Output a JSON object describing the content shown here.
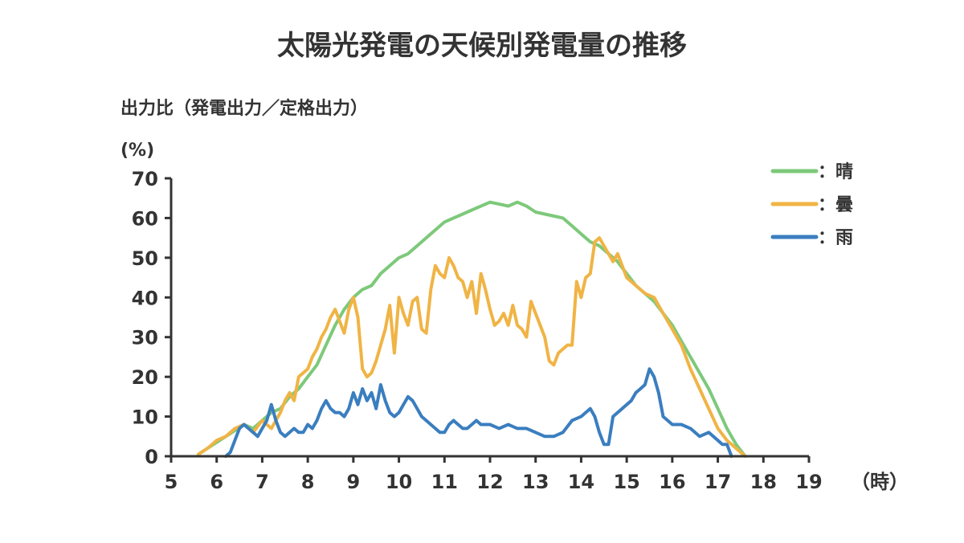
{
  "chart_data": {
    "type": "line",
    "title": "太陽光発電の天候別発電量の推移",
    "ylabel": "出力比（発電出力／定格出力）",
    "yunit": "(%)",
    "xlabel": "（時）",
    "xlim": [
      5,
      19
    ],
    "ylim": [
      0,
      70
    ],
    "x_ticks": [
      "5",
      "6",
      "7",
      "8",
      "9",
      "10",
      "11",
      "12",
      "13",
      "14",
      "15",
      "16",
      "17",
      "18",
      "19"
    ],
    "y_ticks": [
      "0",
      "10",
      "20",
      "30",
      "40",
      "50",
      "60",
      "70"
    ],
    "legend_position": "top-right",
    "grid": false,
    "series": [
      {
        "name": "：晴",
        "color": "#7dc97a",
        "x": [
          5.6,
          5.8,
          6.0,
          6.2,
          6.4,
          6.6,
          6.8,
          7.0,
          7.2,
          7.4,
          7.6,
          7.8,
          8.0,
          8.2,
          8.4,
          8.6,
          8.8,
          9.0,
          9.2,
          9.4,
          9.6,
          9.8,
          10.0,
          10.2,
          10.4,
          10.6,
          10.8,
          11.0,
          11.2,
          11.4,
          11.6,
          11.8,
          12.0,
          12.2,
          12.4,
          12.6,
          12.8,
          13.0,
          13.2,
          13.4,
          13.6,
          13.8,
          14.0,
          14.2,
          14.4,
          14.6,
          14.8,
          15.0,
          15.2,
          15.4,
          15.6,
          15.8,
          16.0,
          16.2,
          16.4,
          16.6,
          16.8,
          17.0,
          17.2,
          17.4,
          17.6
        ],
        "y": [
          0.5,
          2,
          3.5,
          5,
          6.5,
          8,
          7,
          9,
          11,
          12,
          15,
          17,
          20,
          23,
          28,
          33,
          37,
          40,
          42,
          43,
          46,
          48,
          50,
          51,
          53,
          55,
          57,
          59,
          60,
          61,
          62,
          63,
          64,
          63.5,
          63,
          64,
          63,
          61.5,
          61,
          60.5,
          60,
          58,
          56,
          54,
          53,
          51,
          49,
          46,
          43,
          41,
          39,
          36,
          33,
          29,
          25,
          21,
          17,
          12,
          7,
          3,
          0
        ]
      },
      {
        "name": "：曇",
        "color": "#f0b445",
        "x": [
          5.6,
          5.8,
          6.0,
          6.2,
          6.4,
          6.6,
          6.8,
          7.0,
          7.1,
          7.2,
          7.3,
          7.4,
          7.5,
          7.6,
          7.7,
          7.8,
          7.9,
          8.0,
          8.1,
          8.2,
          8.3,
          8.4,
          8.5,
          8.6,
          8.7,
          8.8,
          8.9,
          9.0,
          9.1,
          9.2,
          9.3,
          9.4,
          9.5,
          9.6,
          9.7,
          9.8,
          9.9,
          10.0,
          10.1,
          10.2,
          10.3,
          10.4,
          10.5,
          10.6,
          10.7,
          10.8,
          10.9,
          11.0,
          11.1,
          11.2,
          11.3,
          11.4,
          11.5,
          11.6,
          11.7,
          11.8,
          11.9,
          12.0,
          12.1,
          12.2,
          12.3,
          12.4,
          12.5,
          12.6,
          12.7,
          12.8,
          12.9,
          13.0,
          13.1,
          13.2,
          13.3,
          13.4,
          13.5,
          13.6,
          13.7,
          13.8,
          13.9,
          14.0,
          14.1,
          14.2,
          14.3,
          14.4,
          14.5,
          14.6,
          14.7,
          14.8,
          14.9,
          15.0,
          15.2,
          15.4,
          15.6,
          15.8,
          16.0,
          16.2,
          16.4,
          16.6,
          16.8,
          17.0,
          17.2,
          17.4,
          17.6
        ],
        "y": [
          0.5,
          2,
          4,
          5,
          7,
          8,
          6,
          9,
          8,
          7,
          9,
          11,
          14,
          16,
          14,
          20,
          21,
          22,
          25,
          27,
          30,
          32,
          35,
          37,
          34,
          31,
          37,
          40,
          35,
          22,
          20,
          21,
          24,
          28,
          32,
          38,
          26,
          40,
          36,
          33,
          39,
          40,
          32,
          31,
          42,
          48,
          46,
          45,
          50,
          48,
          45,
          44,
          40,
          44,
          36,
          46,
          42,
          37,
          33,
          34,
          36,
          33,
          38,
          33,
          32,
          30,
          39,
          36,
          33,
          30,
          24,
          23,
          26,
          27,
          28,
          28,
          44,
          40,
          45,
          46,
          54,
          55,
          53,
          51,
          49,
          51,
          48,
          45,
          43,
          41,
          40,
          36,
          32,
          28,
          22,
          17,
          12,
          7,
          4,
          2,
          0
        ]
      },
      {
        "name": "：雨",
        "color": "#3a7ebf",
        "x": [
          6.2,
          6.3,
          6.4,
          6.5,
          6.6,
          6.8,
          6.9,
          7.0,
          7.1,
          7.2,
          7.3,
          7.4,
          7.5,
          7.6,
          7.7,
          7.8,
          7.9,
          8.0,
          8.1,
          8.2,
          8.3,
          8.4,
          8.5,
          8.6,
          8.7,
          8.8,
          8.9,
          9.0,
          9.1,
          9.2,
          9.3,
          9.4,
          9.5,
          9.6,
          9.7,
          9.8,
          9.9,
          10.0,
          10.1,
          10.2,
          10.3,
          10.4,
          10.5,
          10.6,
          10.7,
          10.8,
          10.9,
          11.0,
          11.1,
          11.2,
          11.3,
          11.4,
          11.5,
          11.6,
          11.7,
          11.8,
          11.9,
          12.0,
          12.2,
          12.4,
          12.6,
          12.8,
          13.0,
          13.2,
          13.4,
          13.6,
          13.8,
          14.0,
          14.1,
          14.2,
          14.3,
          14.4,
          14.5,
          14.6,
          14.7,
          14.8,
          14.9,
          15.0,
          15.1,
          15.2,
          15.3,
          15.4,
          15.5,
          15.6,
          15.7,
          15.8,
          15.9,
          16.0,
          16.2,
          16.4,
          16.6,
          16.8,
          17.0,
          17.1,
          17.2,
          17.3
        ],
        "y": [
          0,
          1,
          4,
          7,
          8,
          6,
          5,
          7,
          9,
          13,
          9,
          6,
          5,
          6,
          7,
          6,
          6,
          8,
          7,
          9,
          12,
          14,
          12,
          11,
          11,
          10,
          12,
          16,
          13,
          17,
          14,
          16,
          12,
          18,
          14,
          11,
          10,
          11,
          13,
          15,
          14,
          12,
          10,
          9,
          8,
          7,
          6,
          6,
          8,
          9,
          8,
          7,
          7,
          8,
          9,
          8,
          8,
          8,
          7,
          8,
          7,
          7,
          6,
          5,
          5,
          6,
          9,
          10,
          11,
          12,
          10,
          6,
          3,
          3,
          10,
          11,
          12,
          13,
          14,
          16,
          17,
          18,
          22,
          20,
          16,
          10,
          9,
          8,
          8,
          7,
          5,
          6,
          4,
          3,
          3,
          0
        ]
      }
    ]
  }
}
